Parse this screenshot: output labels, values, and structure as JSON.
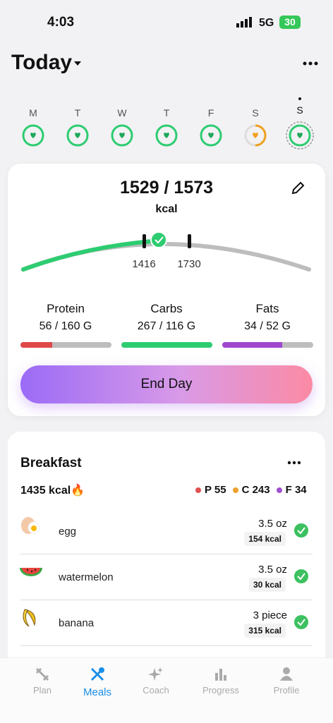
{
  "status_bar": {
    "time": "4:03",
    "network": "5G",
    "battery": "30"
  },
  "header": {
    "title": "Today"
  },
  "week": {
    "days": [
      "M",
      "T",
      "W",
      "T",
      "F",
      "S",
      "S"
    ]
  },
  "summary": {
    "calories": "1529 / 1573",
    "unit": "kcal",
    "range_low": "1416",
    "range_high": "1730",
    "macros": [
      {
        "label": "Protein",
        "value": "56 / 160 G"
      },
      {
        "label": "Carbs",
        "value": "267 / 116 G"
      },
      {
        "label": "Fats",
        "value": "34 / 52 G"
      }
    ],
    "button": "End Day"
  },
  "meal": {
    "title": "Breakfast",
    "calories": "1435 kcal🔥",
    "protein": "P 55",
    "carbs": "C 243",
    "fats": "F 34",
    "items": [
      {
        "name": "egg",
        "amount": "3.5 oz",
        "kcal": "154 kcal"
      },
      {
        "name": "watermelon",
        "amount": "3.5 oz",
        "kcal": "30 kcal"
      },
      {
        "name": "banana",
        "amount": "3 piece",
        "kcal": "315 kcal"
      }
    ]
  },
  "nav": {
    "items": [
      "Plan",
      "Meals",
      "Coach",
      "Progress",
      "Profile"
    ]
  }
}
